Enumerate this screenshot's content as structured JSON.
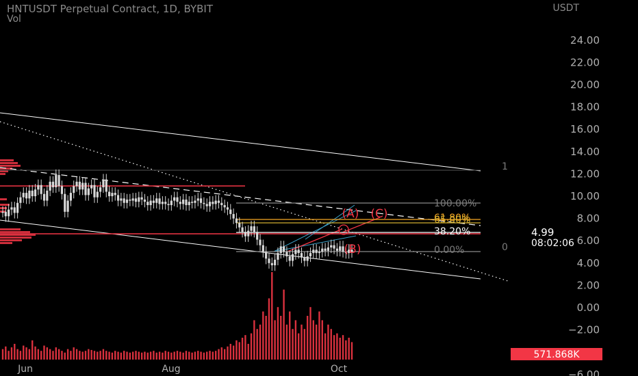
{
  "header": {
    "title": "HNTUSDT Perpetual Contract, 1D, BYBIT",
    "volume_label": "Vol",
    "currency": "USDT"
  },
  "chart_data": {
    "type": "candlestick",
    "symbol": "HNTUSDT",
    "interval": "1D",
    "exchange": "BYBIT",
    "y_axis": {
      "ticks": [
        "24.00",
        "22.00",
        "20.00",
        "18.00",
        "16.00",
        "14.00",
        "12.00",
        "10.00",
        "8.00",
        "6.00",
        "4.00",
        "2.00",
        "0.00",
        "−2.00",
        "−4.00",
        "−6.00"
      ],
      "range": [
        -6,
        26
      ]
    },
    "x_axis": {
      "ticks": [
        "Jun",
        "Aug",
        "Oct"
      ]
    },
    "price_approx": [
      8.6,
      8.2,
      8.8,
      9.0,
      8.5,
      9.4,
      9.9,
      10.3,
      9.8,
      10.5,
      10.0,
      10.6,
      11.0,
      10.2,
      9.6,
      10.5,
      11.3,
      10.8,
      11.9,
      10.9,
      10.2,
      8.6,
      9.6,
      10.3,
      10.9,
      11.3,
      10.6,
      11.2,
      10.1,
      10.7,
      11.0,
      9.9,
      10.4,
      10.8,
      11.5,
      10.4,
      10.0,
      10.3,
      10.1,
      9.6,
      9.8,
      9.4,
      9.7,
      9.6,
      9.8,
      9.5,
      9.9,
      9.7,
      9.5,
      9.2,
      9.6,
      9.4,
      9.8,
      9.3,
      9.5,
      9.3,
      9.2,
      9.6,
      9.9,
      9.5,
      9.3,
      9.7,
      9.2,
      9.5,
      9.4,
      9.6,
      9.8,
      9.4,
      9.3,
      9.1,
      9.5,
      9.3,
      9.6,
      9.4,
      9.2,
      9.0,
      8.8,
      8.4,
      8.0,
      7.6,
      7.2,
      6.8,
      6.4,
      6.9,
      7.3,
      6.8,
      6.1,
      5.6,
      5.0,
      4.4,
      4.0,
      3.8,
      4.3,
      4.9,
      5.5,
      5.0,
      4.6,
      4.2,
      4.8,
      5.2,
      4.9,
      4.5,
      4.2,
      4.6,
      4.9,
      5.2,
      4.9,
      5.0,
      5.3,
      5.1,
      5.4,
      5.6,
      5.3,
      5.1,
      5.5,
      5.0,
      4.9,
      5.2,
      4.99
    ],
    "volume_approx": [
      0.12,
      0.15,
      0.1,
      0.14,
      0.18,
      0.12,
      0.1,
      0.16,
      0.14,
      0.12,
      0.22,
      0.15,
      0.12,
      0.1,
      0.16,
      0.14,
      0.12,
      0.1,
      0.14,
      0.12,
      0.1,
      0.08,
      0.12,
      0.1,
      0.14,
      0.12,
      0.1,
      0.09,
      0.1,
      0.12,
      0.11,
      0.1,
      0.09,
      0.1,
      0.12,
      0.1,
      0.09,
      0.08,
      0.1,
      0.09,
      0.08,
      0.1,
      0.09,
      0.08,
      0.09,
      0.1,
      0.09,
      0.08,
      0.09,
      0.08,
      0.09,
      0.1,
      0.08,
      0.09,
      0.08,
      0.1,
      0.09,
      0.08,
      0.09,
      0.1,
      0.09,
      0.08,
      0.1,
      0.09,
      0.08,
      0.09,
      0.1,
      0.09,
      0.08,
      0.09,
      0.1,
      0.09,
      0.1,
      0.12,
      0.14,
      0.12,
      0.15,
      0.18,
      0.16,
      0.22,
      0.2,
      0.25,
      0.28,
      0.18,
      0.3,
      0.45,
      0.35,
      0.4,
      0.55,
      0.5,
      0.7,
      1.0,
      0.45,
      0.6,
      0.5,
      0.8,
      0.4,
      0.55,
      0.35,
      0.45,
      0.3,
      0.4,
      0.35,
      0.5,
      0.6,
      0.45,
      0.4,
      0.55,
      0.45,
      0.3,
      0.4,
      0.35,
      0.28,
      0.3,
      0.25,
      0.28,
      0.22,
      0.25,
      0.2
    ],
    "fib_labels": [
      "100.00%",
      "61.80%",
      "65.00%",
      "38.20%",
      "0.00%"
    ],
    "fib_extra_labels": [
      "1",
      "0"
    ],
    "wave_labels": [
      "(A)",
      "(C)",
      "(B)"
    ],
    "last_price": "4.99",
    "countdown": "08:02:06",
    "volume_value": "571.868K",
    "colors": {
      "background": "#000000",
      "candle": "#d8d8d8",
      "red": "#f23645",
      "orange": "#f5a623",
      "gold": "#d4b030",
      "axis_text": "#b0b0b0",
      "white_line": "#ffffff"
    }
  }
}
